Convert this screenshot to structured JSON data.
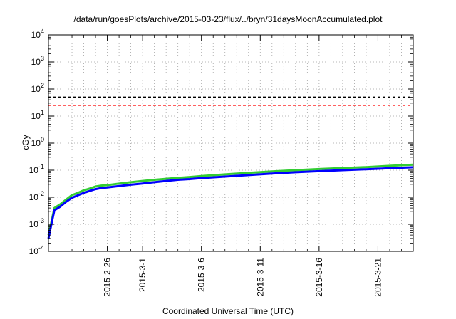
{
  "chart_data": {
    "type": "line",
    "title": "/data/run/goesPlots/archive/2015-03-23/flux/../bryn/31daysMoonAccumulated.plot",
    "xlabel": "Coordinated Universal Time (UTC)",
    "ylabel": "cGy",
    "x_range": [
      "2015-02-21",
      "2015-03-24"
    ],
    "y_scale": "log",
    "ylim": [
      0.0001,
      10000
    ],
    "grid": true,
    "y_ticks": [
      {
        "value": 0.0001,
        "mantissa": "10",
        "exp": "-4"
      },
      {
        "value": 0.001,
        "mantissa": "10",
        "exp": "-3"
      },
      {
        "value": 0.01,
        "mantissa": "10",
        "exp": "-2"
      },
      {
        "value": 0.1,
        "mantissa": "10",
        "exp": "-1"
      },
      {
        "value": 1,
        "mantissa": "10",
        "exp": "0"
      },
      {
        "value": 10,
        "mantissa": "10",
        "exp": "1"
      },
      {
        "value": 100,
        "mantissa": "10",
        "exp": "2"
      },
      {
        "value": 1000,
        "mantissa": "10",
        "exp": "3"
      },
      {
        "value": 10000,
        "mantissa": "10",
        "exp": "4"
      }
    ],
    "x_ticks": [
      {
        "date": "2015-02-26",
        "label": "2015-2-26"
      },
      {
        "date": "2015-03-01",
        "label": "2015-3-1"
      },
      {
        "date": "2015-03-06",
        "label": "2015-3-6"
      },
      {
        "date": "2015-03-11",
        "label": "2015-3-11"
      },
      {
        "date": "2015-03-16",
        "label": "2015-3-16"
      },
      {
        "date": "2015-03-21",
        "label": "2015-3-21"
      }
    ],
    "x_minor_grid": [
      "2015-02-23",
      "2015-02-24",
      "2015-02-25",
      "2015-02-27",
      "2015-02-28",
      "2015-03-02",
      "2015-03-03",
      "2015-03-04",
      "2015-03-05",
      "2015-03-07",
      "2015-03-08",
      "2015-03-09",
      "2015-03-10",
      "2015-03-12",
      "2015-03-13",
      "2015-03-14",
      "2015-03-15",
      "2015-03-17",
      "2015-03-18",
      "2015-03-19",
      "2015-03-20",
      "2015-03-22",
      "2015-03-23"
    ],
    "thresholds": [
      {
        "value": 50,
        "color": "#000000"
      },
      {
        "value": 25,
        "color": "#ff0000"
      }
    ],
    "series": [
      {
        "color": "#33cc33",
        "x": [
          "2015-02-21T00:00",
          "2015-02-21T06:00",
          "2015-02-21T12:00",
          "2015-02-22T00:00",
          "2015-02-22T12:00",
          "2015-02-23T00:00",
          "2015-02-23T12:00",
          "2015-02-24T00:00",
          "2015-02-24T12:00",
          "2015-02-25T00:00",
          "2015-02-25T12:00",
          "2015-02-26T00:00",
          "2015-02-27T00:00",
          "2015-02-28T00:00",
          "2015-03-01T00:00",
          "2015-03-02T00:00",
          "2015-03-03T00:00",
          "2015-03-04T00:00",
          "2015-03-05T00:00",
          "2015-03-06T00:00",
          "2015-03-08T00:00",
          "2015-03-10T00:00",
          "2015-03-12T00:00",
          "2015-03-14T00:00",
          "2015-03-16T00:00",
          "2015-03-18T00:00",
          "2015-03-20T00:00",
          "2015-03-22T00:00",
          "2015-03-24T00:00"
        ],
        "values": [
          0.0004,
          0.0012,
          0.004,
          0.0055,
          0.0082,
          0.012,
          0.0145,
          0.018,
          0.021,
          0.025,
          0.027,
          0.028,
          0.032,
          0.036,
          0.04,
          0.044,
          0.048,
          0.052,
          0.056,
          0.061,
          0.07,
          0.08,
          0.09,
          0.1,
          0.11,
          0.12,
          0.13,
          0.145,
          0.16
        ]
      },
      {
        "color": "#0000ff",
        "x": [
          "2015-02-21T00:00",
          "2015-02-21T06:00",
          "2015-02-21T12:00",
          "2015-02-22T00:00",
          "2015-02-22T12:00",
          "2015-02-23T00:00",
          "2015-02-23T12:00",
          "2015-02-24T00:00",
          "2015-02-24T12:00",
          "2015-02-25T00:00",
          "2015-02-25T12:00",
          "2015-02-26T00:00",
          "2015-02-27T00:00",
          "2015-02-28T00:00",
          "2015-03-01T00:00",
          "2015-03-02T00:00",
          "2015-03-03T00:00",
          "2015-03-04T00:00",
          "2015-03-05T00:00",
          "2015-03-06T00:00",
          "2015-03-08T00:00",
          "2015-03-10T00:00",
          "2015-03-12T00:00",
          "2015-03-14T00:00",
          "2015-03-16T00:00",
          "2015-03-18T00:00",
          "2015-03-20T00:00",
          "2015-03-22T00:00",
          "2015-03-24T00:00"
        ],
        "values": [
          0.0003,
          0.001,
          0.0033,
          0.0045,
          0.0068,
          0.0095,
          0.0118,
          0.0145,
          0.017,
          0.02,
          0.022,
          0.023,
          0.026,
          0.029,
          0.032,
          0.036,
          0.04,
          0.044,
          0.047,
          0.051,
          0.058,
          0.066,
          0.075,
          0.084,
          0.092,
          0.1,
          0.108,
          0.118,
          0.128
        ]
      }
    ]
  }
}
